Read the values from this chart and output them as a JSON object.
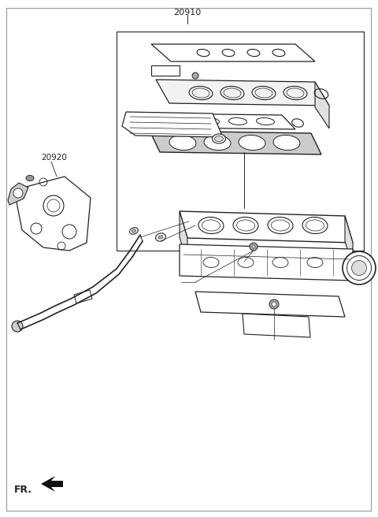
{
  "title": "20910",
  "label_20920": "20920",
  "label_FR": "FR.",
  "bg_color": "#ffffff",
  "line_color": "#222222",
  "fig_width": 4.8,
  "fig_height": 6.56,
  "dpi": 100
}
